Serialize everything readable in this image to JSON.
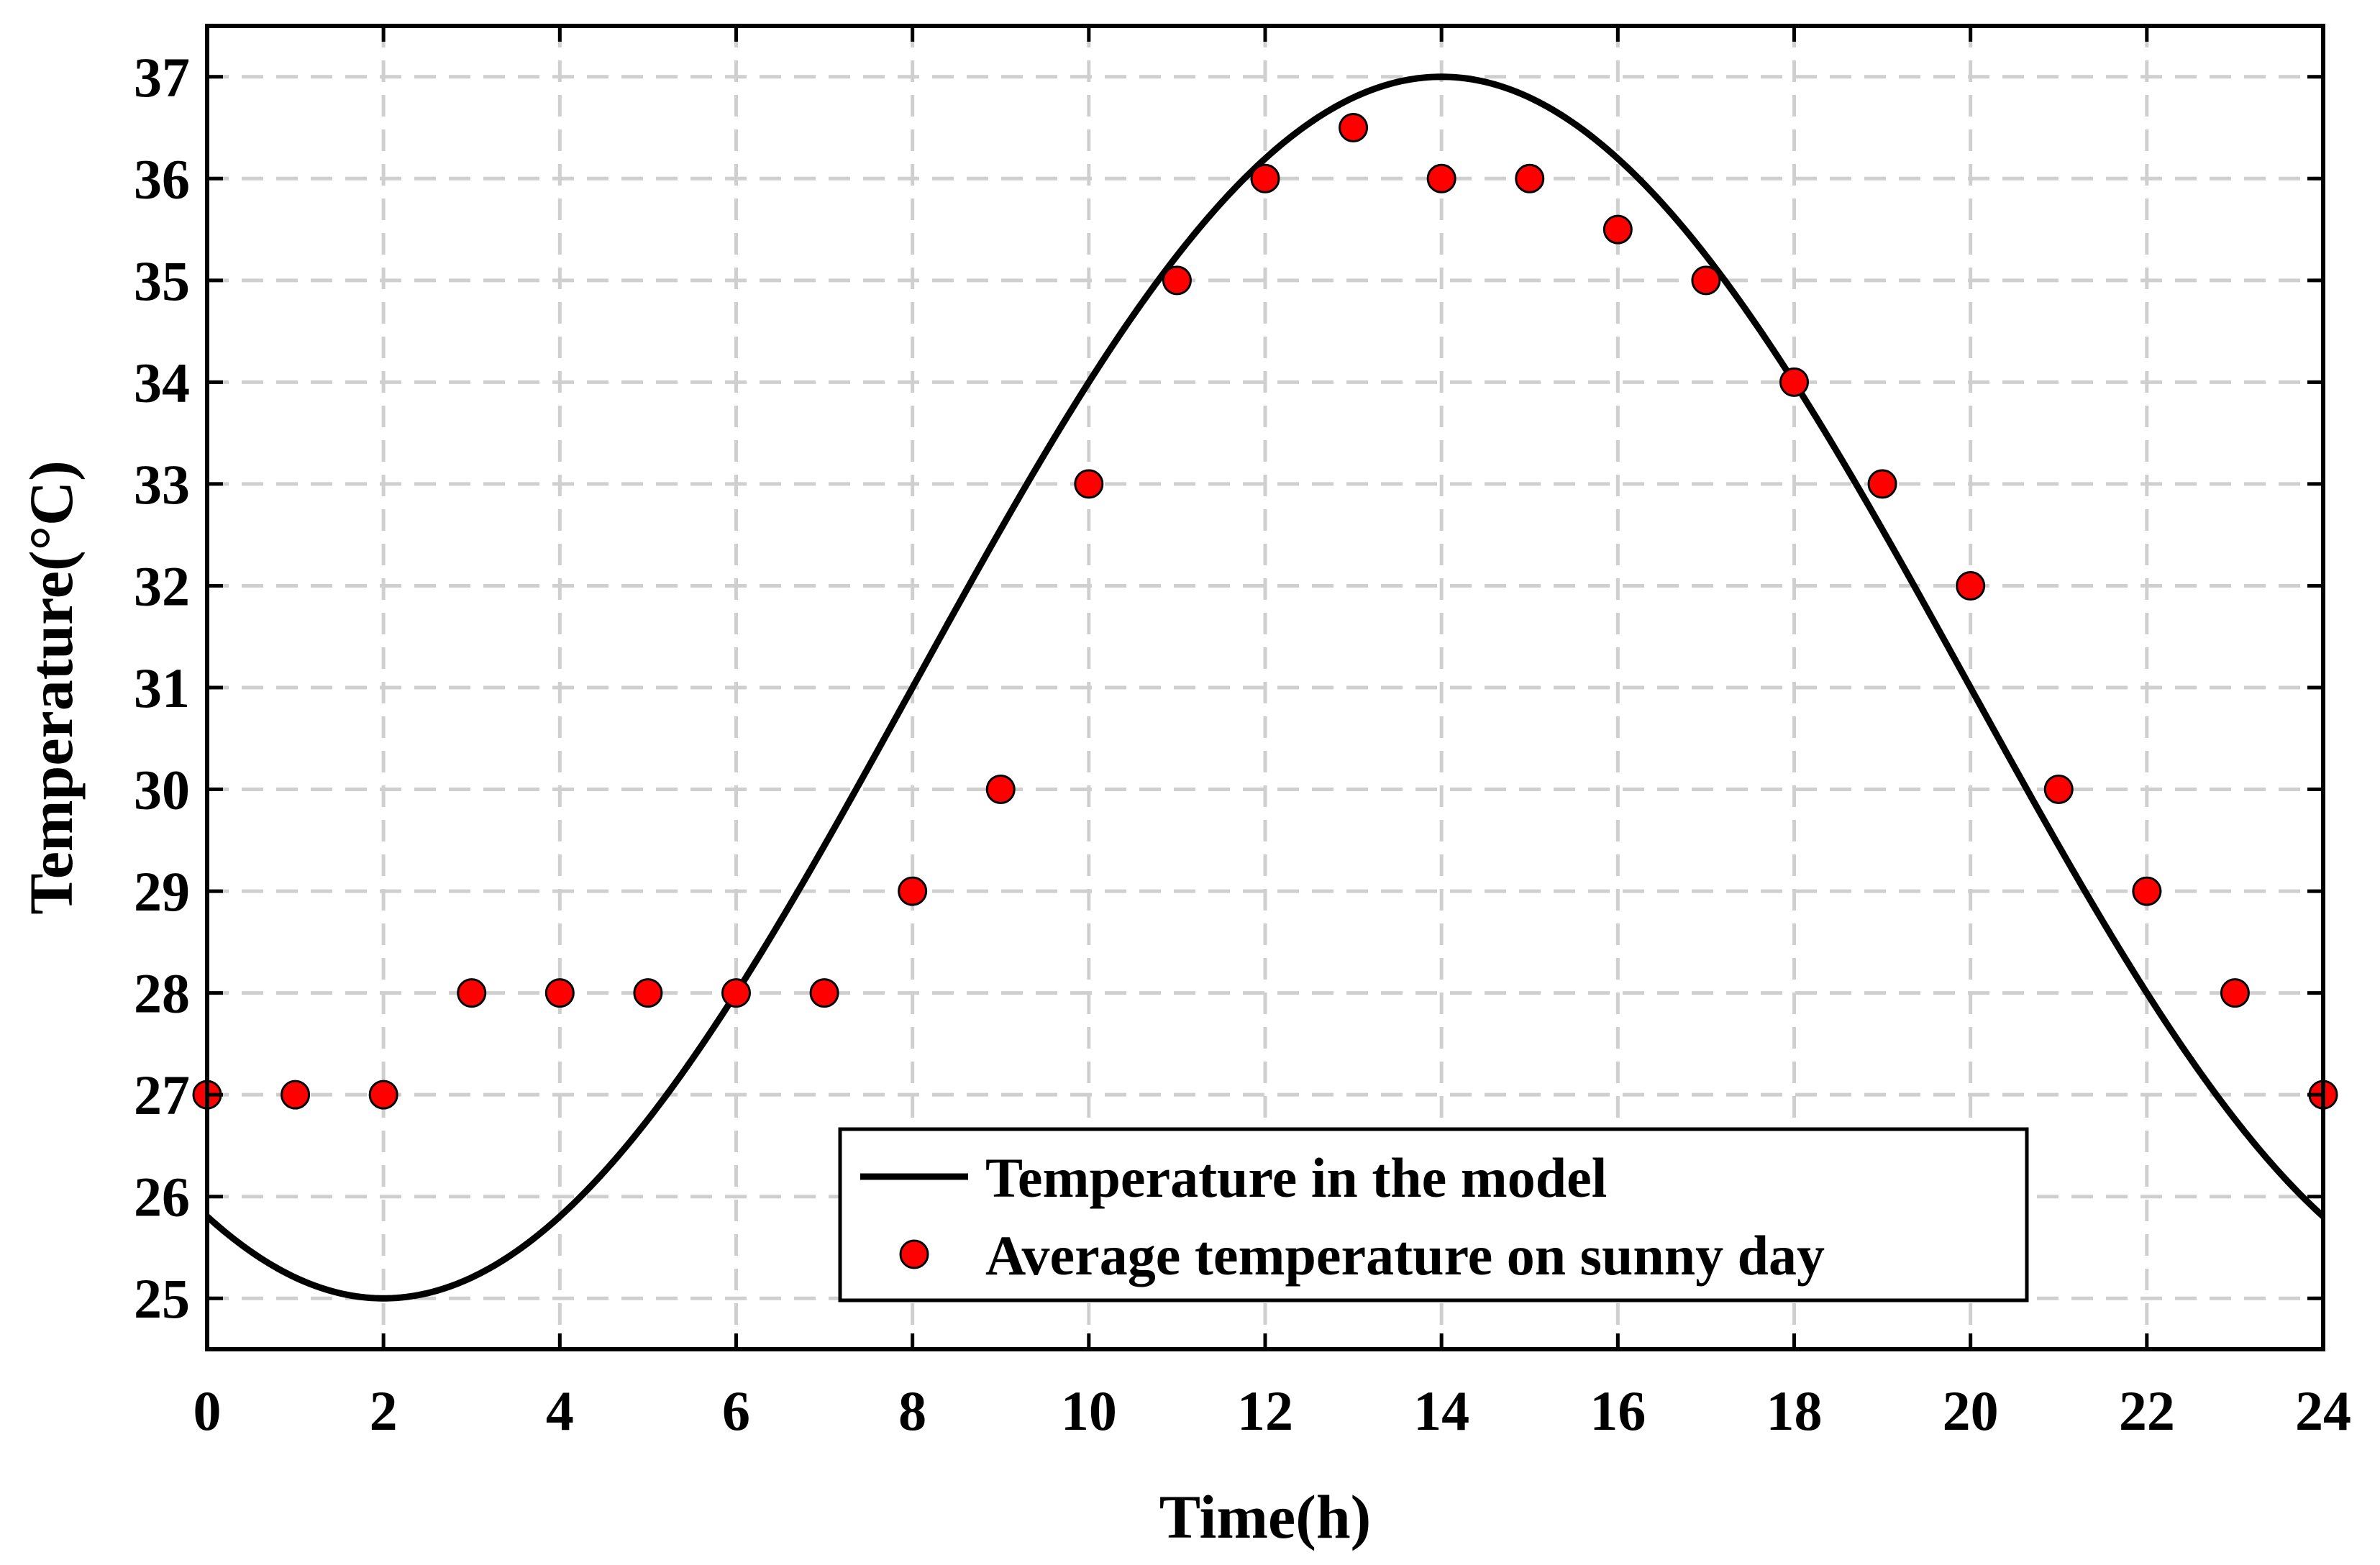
{
  "chart_data": {
    "type": "line",
    "title": "",
    "xlabel": "Time(h)",
    "ylabel": "Temperature(°C)",
    "xlim": [
      0,
      24
    ],
    "ylim": [
      24.5,
      37.5
    ],
    "xticks": [
      0,
      2,
      4,
      6,
      8,
      10,
      12,
      14,
      16,
      18,
      20,
      22,
      24
    ],
    "yticks": [
      25,
      26,
      27,
      28,
      29,
      30,
      31,
      32,
      33,
      34,
      35,
      36,
      37
    ],
    "grid": true,
    "legend_position": "bottom-right",
    "series": [
      {
        "name": "Temperature in the model",
        "kind": "line",
        "color": "#000000",
        "function": {
          "mean": 31,
          "amplitude": 6,
          "peak_hour": 14,
          "period": 24
        }
      },
      {
        "name": "Average temperature on sunny day",
        "kind": "scatter",
        "color": "#ff0000",
        "edge_color": "#000000",
        "x": [
          0,
          1,
          2,
          3,
          4,
          5,
          6,
          7,
          8,
          9,
          10,
          11,
          12,
          13,
          14,
          15,
          16,
          17,
          18,
          19,
          20,
          21,
          22,
          23,
          24
        ],
        "y": [
          27,
          27,
          27,
          28,
          28,
          28,
          28,
          28,
          29,
          30,
          33,
          35,
          36,
          36.5,
          36,
          36,
          35.5,
          35,
          34,
          33,
          32,
          30,
          29,
          28,
          27
        ]
      }
    ]
  }
}
